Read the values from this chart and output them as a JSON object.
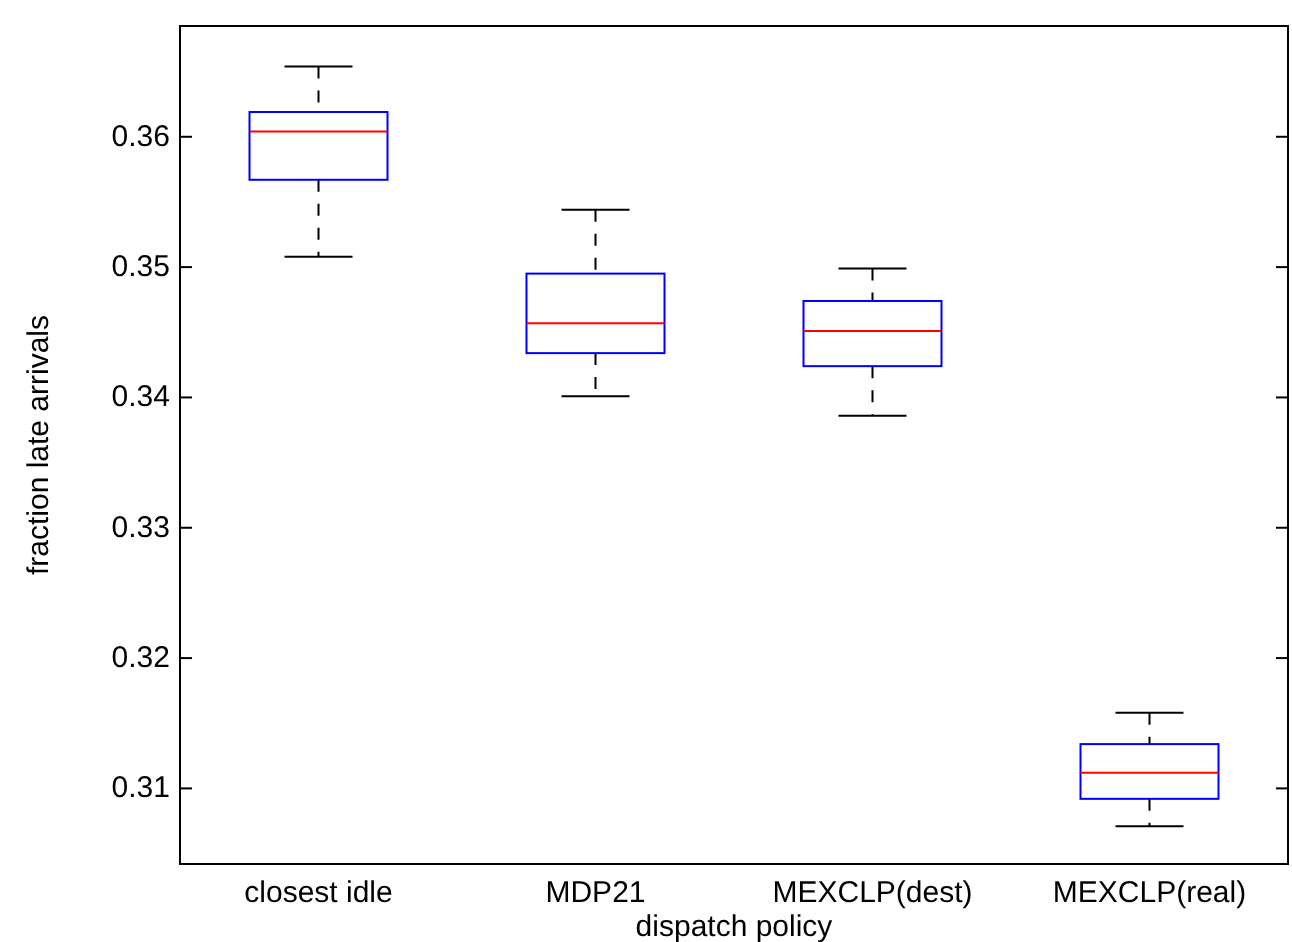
{
  "chart_data": {
    "type": "box",
    "categories": [
      "closest idle",
      "MDP21",
      "MEXCLP(dest)",
      "MEXCLP(real)"
    ],
    "boxes": [
      {
        "low": 0.3508,
        "q1": 0.3567,
        "median": 0.3604,
        "q3": 0.3619,
        "high": 0.3654
      },
      {
        "low": 0.3401,
        "q1": 0.3434,
        "median": 0.3457,
        "q3": 0.3495,
        "high": 0.3544
      },
      {
        "low": 0.3386,
        "q1": 0.3424,
        "median": 0.3451,
        "q3": 0.3474,
        "high": 0.3499
      },
      {
        "low": 0.3071,
        "q1": 0.3092,
        "median": 0.3112,
        "q3": 0.3134,
        "high": 0.3158
      }
    ],
    "color": "#0000ff",
    "xlabel": "dispatch policy",
    "ylabel": "fraction late arrivals",
    "ylim": [
      0.3042,
      0.3685
    ],
    "yticks": [
      0.31,
      0.32,
      0.33,
      0.34,
      0.35,
      0.36
    ],
    "grid": false
  }
}
